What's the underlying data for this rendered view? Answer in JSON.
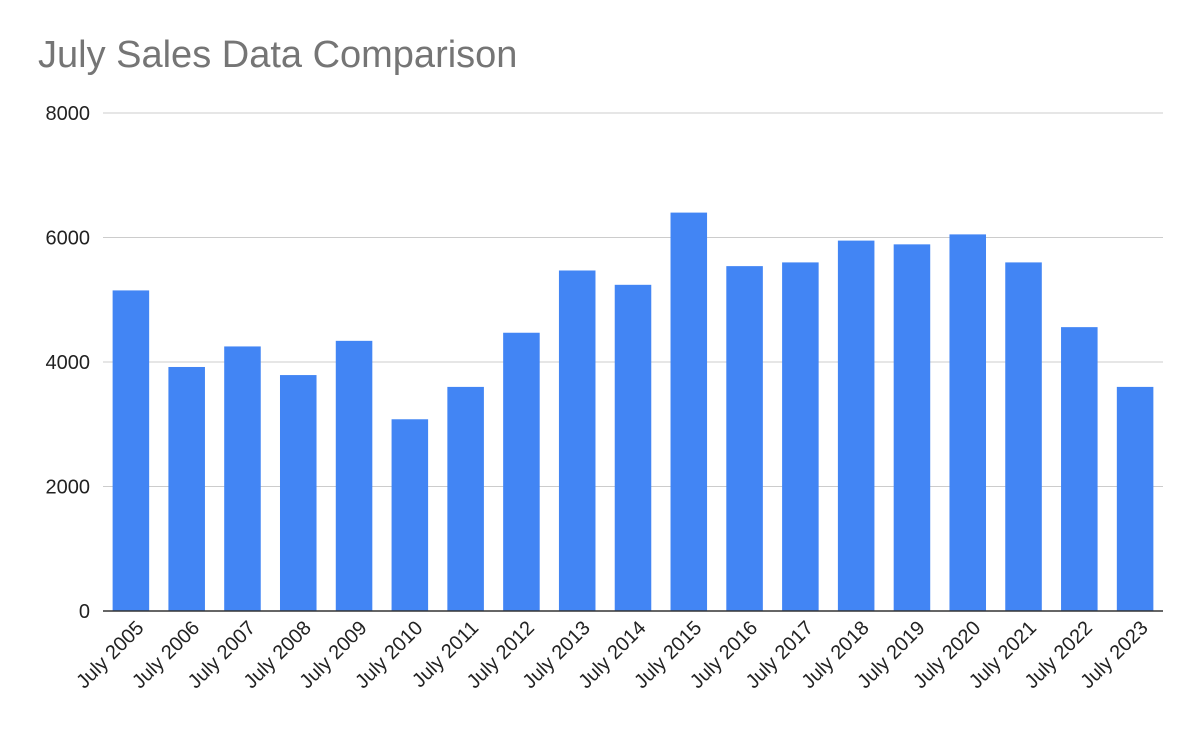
{
  "chart_data": {
    "type": "bar",
    "title": "July Sales Data Comparison",
    "xlabel": "",
    "ylabel": "",
    "categories": [
      "July 2005",
      "July 2006",
      "July 2007",
      "July 2008",
      "July 2009",
      "July 2010",
      "July 2011",
      "July 2012",
      "July 2013",
      "July 2014",
      "July 2015",
      "July 2016",
      "July 2017",
      "July 2018",
      "July 2019",
      "July 2020",
      "July 2021",
      "July 2022",
      "July 2023"
    ],
    "values": [
      5150,
      3920,
      4250,
      3790,
      4340,
      3080,
      3600,
      4470,
      5470,
      5240,
      6400,
      5540,
      5600,
      5950,
      5890,
      6050,
      5600,
      4560,
      3600
    ],
    "ylim": [
      0,
      8000
    ],
    "yticks": [
      0,
      2000,
      4000,
      6000,
      8000
    ],
    "grid": true,
    "legend": "none",
    "bar_color": "#4285f4",
    "grid_color": "#cccccc",
    "axis_color": "#333333",
    "title_color": "#757575"
  }
}
